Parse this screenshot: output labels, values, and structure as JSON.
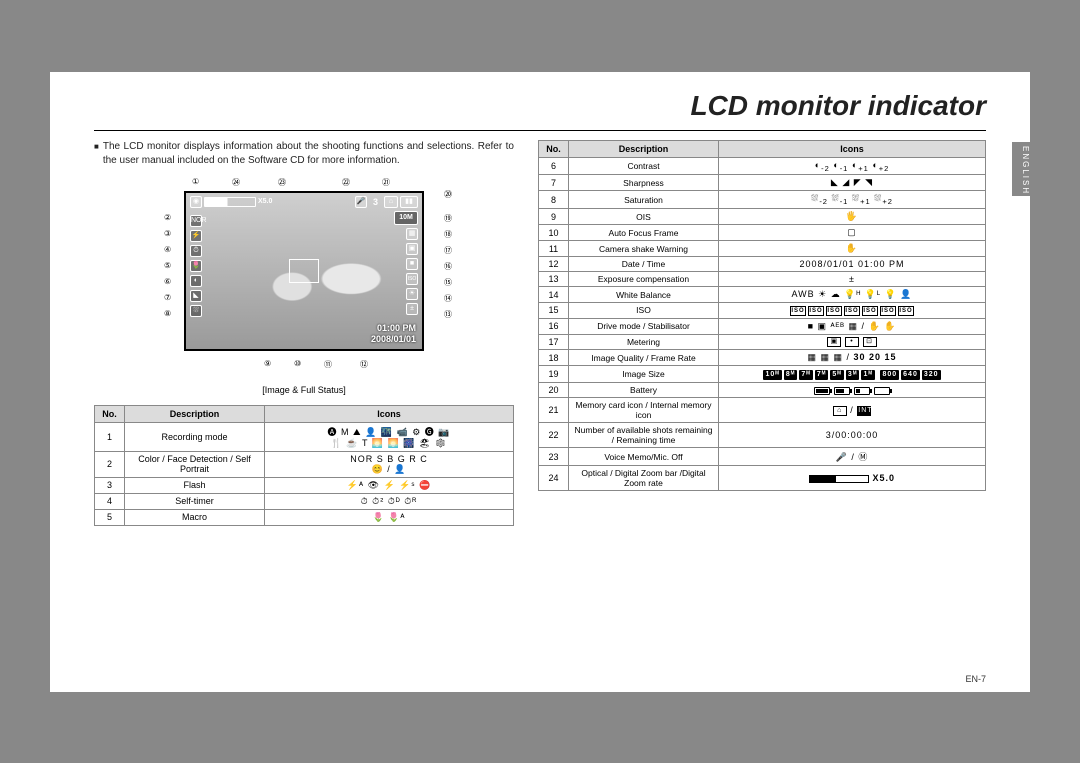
{
  "title": "LCD monitor indicator",
  "language_tab": "ENGLISH",
  "page_number": "EN-7",
  "intro_text": "The LCD monitor displays information about the shooting functions and selections. Refer to the user manual included on the Software CD for more information.",
  "lcd": {
    "caption": "[Image & Full Status]",
    "time": "01:00 PM",
    "date": "2008/01/01",
    "megapixel": "10M",
    "remaining_shots": "3",
    "zoom_text": "X5.0",
    "callouts_top": [
      "①",
      "㉔",
      "㉓",
      "㉒",
      "㉑",
      "⑳"
    ],
    "callouts_left": [
      "②",
      "③",
      "④",
      "⑤",
      "⑥",
      "⑦",
      "⑧"
    ],
    "callouts_right": [
      "⑲",
      "⑱",
      "⑰",
      "⑯",
      "⑮",
      "⑭",
      "⑬"
    ],
    "callouts_bottom": [
      "⑨",
      "⑩",
      "⑪",
      "⑫"
    ]
  },
  "table_headers": {
    "no": "No.",
    "desc": "Description",
    "icons": "Icons"
  },
  "table_left": [
    {
      "no": "1",
      "desc": "Recording mode",
      "icons": "🅐 M ⛰ 👤 🌃 📹 ⚙ 🅖 📷<br>🍴 ☕ T 🌅 🌅 🎆 🏖 ❄ "
    },
    {
      "no": "2",
      "desc": "Color / Face Detection / Self Portrait",
      "icons": "NOR  S  B  G  R  C<br>😊 / 👤"
    },
    {
      "no": "3",
      "desc": "Flash",
      "icons": "⚡ᴬ  👁  ⚡  ⚡ˢ  ⛔"
    },
    {
      "no": "4",
      "desc": "Self-timer",
      "icons": "⏱  ⏱²  ⏱ᴰ  ⏱ᴿ"
    },
    {
      "no": "5",
      "desc": "Macro",
      "icons": "🌷  🌷ᴬ"
    }
  ],
  "table_right": [
    {
      "no": "6",
      "desc": "Contrast",
      "icons": "◐<sub>-2</sub>  ◐<sub>-1</sub>  ◐<sub>+1</sub>  ◐<sub>+2</sub>"
    },
    {
      "no": "7",
      "desc": "Sharpness",
      "icons": "◣  ◢  ◤  ◥"
    },
    {
      "no": "8",
      "desc": "Saturation",
      "icons": "⛆<sub>-2</sub>  ⛆<sub>-1</sub>  ⛆<sub>+1</sub>  ⛆<sub>+2</sub>"
    },
    {
      "no": "9",
      "desc": "OIS",
      "icons": "🖐"
    },
    {
      "no": "10",
      "desc": "Auto Focus Frame",
      "icons": "▢"
    },
    {
      "no": "11",
      "desc": "Camera shake Warning",
      "icons": "✋"
    },
    {
      "no": "12",
      "desc": "Date / Time",
      "icons_text": "2008/01/01   01:00 PM"
    },
    {
      "no": "13",
      "desc": "Exposure compensation",
      "icons": "±"
    },
    {
      "no": "14",
      "desc": "White Balance",
      "icons": "AWB  ☀  ☁  💡ᴴ  💡ᴸ  💡  👤"
    },
    {
      "no": "15",
      "desc": "ISO",
      "icons_html": "<span class='isobox'>ISO</span><span class='isobox'>ISO</span><span class='isobox'>ISO</span><span class='isobox'>ISO</span><span class='isobox'>ISO</span><span class='isobox'>ISO</span><span class='isobox'>ISO</span>"
    },
    {
      "no": "16",
      "desc": "Drive mode / Stabilisator",
      "icons": "■  ▣  ᴬᴱᴮ  ▦ / ✋ ✋"
    },
    {
      "no": "17",
      "desc": "Metering",
      "icons_html": "<span class='box'>▣</span> <span class='box'>•</span> <span class='box'>⊡</span>"
    },
    {
      "no": "18",
      "desc": "Image Quality / Frame Rate",
      "icons": "▦  ▦  ▦  /  <b>30 20 15</b>"
    },
    {
      "no": "19",
      "desc": "Image Size",
      "icons_html": "<span class='sizebox'>10ᴹ</span><span class='sizebox'>8ᴹ</span><span class='sizebox'>7ᴹ</span><span class='sizebox'>7ᴹ</span><span class='sizebox'>5ᴹ</span><span class='sizebox'>3ᴹ</span><span class='sizebox'>1ᴹ</span>  <span class='sizebox'>800</span><span class='sizebox'>640</span><span class='sizebox'>320</span>"
    },
    {
      "no": "20",
      "desc": "Battery",
      "icons_html": "<span class='batt'><span class='fill' style='width:12px'></span></span><span class='batt'><span class='fill' style='width:8px'></span></span><span class='batt'><span class='fill' style='width:4px'></span></span><span class='batt'></span>"
    },
    {
      "no": "21",
      "desc": "Memory card icon / Internal memory icon",
      "icons_html": "<span class='box'>⌂</span> / <span class='box' style='background:#000;color:#fff'>INT</span>"
    },
    {
      "no": "22",
      "desc": "Number of available shots remaining / Remaining time",
      "icons_text": "3/00:00:00"
    },
    {
      "no": "23",
      "desc": "Voice Memo/Mic. Off",
      "icons": "🎤 / Ⓜ"
    },
    {
      "no": "24",
      "desc": "Optical / Digital Zoom bar /Digital Zoom rate",
      "icons_html": "<span class='zoom-ind'></span> <b>X5.0</b>"
    }
  ]
}
